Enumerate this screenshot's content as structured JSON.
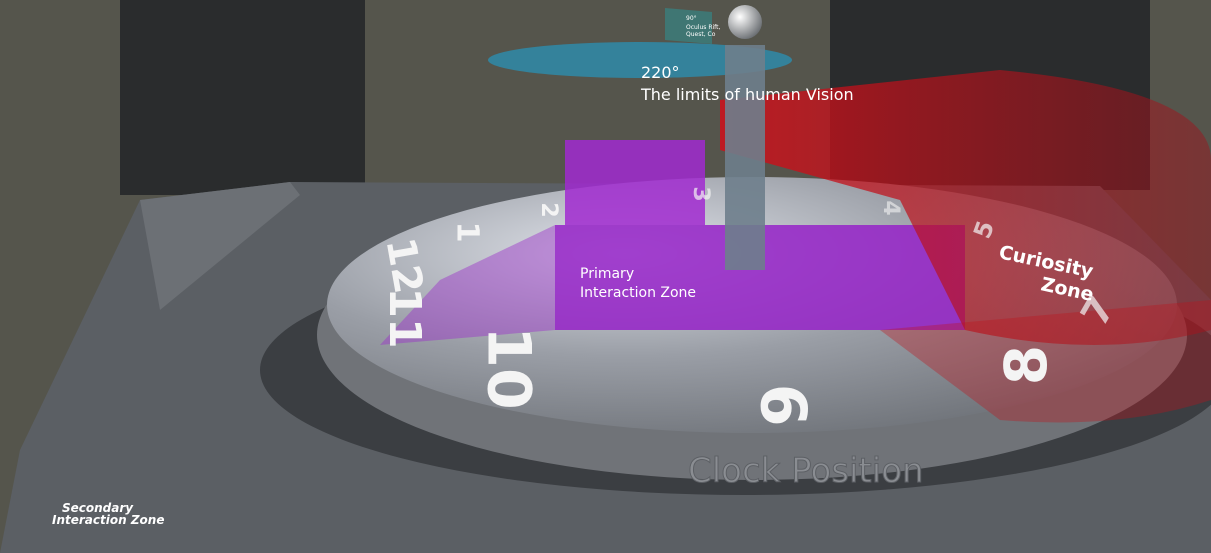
{
  "labels": {
    "device_fov": "90°",
    "device_names": [
      "Oculus Rift,",
      "Quest, Co"
    ],
    "vision_angle": "220°",
    "vision_text": "The limits of human Vision",
    "primary_zone": [
      "Primary",
      "Interaction Zone"
    ],
    "curiosity_zone": [
      "Curiosity",
      "Zone"
    ],
    "clock_position": "Clock Position",
    "secondary_zone": [
      "Secondary",
      "Interaction Zone"
    ]
  },
  "clock": {
    "numerals": [
      "10",
      "11",
      "12",
      "1",
      "2",
      "3",
      "4",
      "5",
      "7",
      "8",
      "9"
    ]
  }
}
